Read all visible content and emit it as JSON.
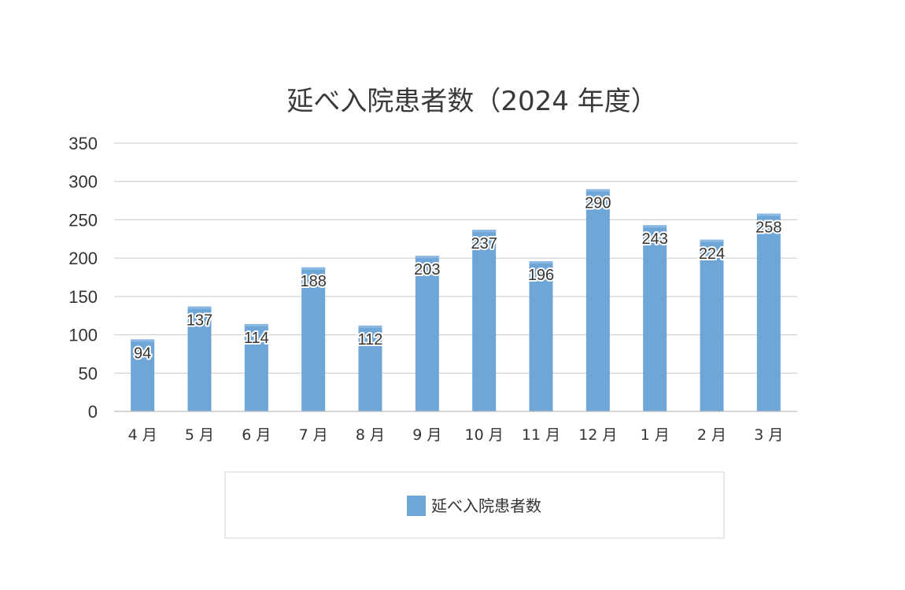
{
  "chart_data": {
    "type": "bar",
    "title": "延べ入院患者数（2024 年度）",
    "categories": [
      "4 月",
      "5 月",
      "6 月",
      "7 月",
      "8 月",
      "9 月",
      "10 月",
      "11 月",
      "12 月",
      "1 月",
      "2 月",
      "3 月"
    ],
    "series": [
      {
        "name": "延べ入院患者数",
        "values": [
          94,
          137,
          114,
          188,
          112,
          203,
          237,
          196,
          290,
          243,
          224,
          258
        ],
        "color": "#6fa6d8"
      }
    ],
    "ylim": [
      0,
      350
    ],
    "y_ticks": [
      0,
      50,
      100,
      150,
      200,
      250,
      300,
      350
    ],
    "grid": true,
    "legend_position": "bottom",
    "data_labels": true
  }
}
